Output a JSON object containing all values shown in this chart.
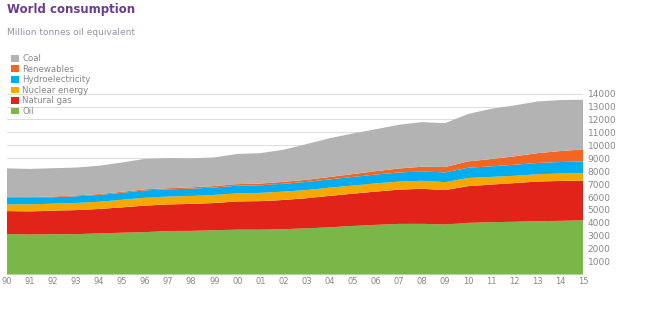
{
  "title": "World consumption",
  "subtitle": "Million tonnes oil equivalent",
  "years": [
    1990,
    1991,
    1992,
    1993,
    1994,
    1995,
    1996,
    1997,
    1998,
    1999,
    2000,
    2001,
    2002,
    2003,
    2004,
    2005,
    2006,
    2007,
    2008,
    2009,
    2010,
    2011,
    2012,
    2013,
    2014,
    2015
  ],
  "oil": [
    3136,
    3098,
    3121,
    3124,
    3183,
    3238,
    3282,
    3370,
    3378,
    3429,
    3474,
    3474,
    3511,
    3574,
    3656,
    3760,
    3843,
    3921,
    3927,
    3874,
    4000,
    4051,
    4084,
    4130,
    4156,
    4200
  ],
  "natural_gas": [
    1774,
    1791,
    1817,
    1861,
    1890,
    1961,
    2054,
    2056,
    2089,
    2105,
    2183,
    2208,
    2258,
    2335,
    2431,
    2498,
    2575,
    2647,
    2709,
    2660,
    2840,
    2905,
    2993,
    3067,
    3087,
    3073
  ],
  "nuclear": [
    526,
    545,
    545,
    554,
    558,
    587,
    612,
    610,
    611,
    629,
    627,
    637,
    648,
    628,
    635,
    629,
    637,
    622,
    620,
    614,
    630,
    600,
    563,
    563,
    574,
    583
  ],
  "hydro": [
    496,
    498,
    494,
    515,
    527,
    540,
    565,
    554,
    566,
    570,
    590,
    590,
    609,
    632,
    641,
    666,
    683,
    709,
    724,
    755,
    795,
    814,
    855,
    873,
    893,
    892
  ],
  "renewables": [
    56,
    58,
    62,
    66,
    70,
    79,
    83,
    91,
    103,
    113,
    122,
    131,
    145,
    164,
    186,
    219,
    261,
    308,
    362,
    415,
    493,
    566,
    651,
    756,
    844,
    937
  ],
  "coal": [
    2229,
    2184,
    2188,
    2156,
    2189,
    2264,
    2358,
    2328,
    2244,
    2219,
    2335,
    2352,
    2482,
    2760,
    2999,
    3144,
    3244,
    3380,
    3452,
    3393,
    3665,
    3887,
    3937,
    4000,
    3945,
    3840
  ],
  "oil_color": "#7ab648",
  "natural_gas_color": "#e2231a",
  "nuclear_color": "#f5a800",
  "hydro_color": "#00aeef",
  "renewables_color": "#f26522",
  "coal_color": "#b3b3b3",
  "bg_color": "#ffffff",
  "grid_color": "#d0d0d0",
  "title_color": "#6b3d8e",
  "subtitle_color": "#9b8ea8",
  "tick_color": "#888888",
  "ylim": [
    0,
    14000
  ],
  "yticks": [
    0,
    1000,
    2000,
    3000,
    4000,
    5000,
    6000,
    7000,
    8000,
    9000,
    10000,
    11000,
    12000,
    13000,
    14000
  ],
  "legend_labels": [
    "Coal",
    "Renewables",
    "Hydroelectricity",
    "Nuclear energy",
    "Natural gas",
    "Oil"
  ],
  "legend_colors": [
    "#b3b3b3",
    "#f26522",
    "#00aeef",
    "#f5a800",
    "#e2231a",
    "#7ab648"
  ]
}
